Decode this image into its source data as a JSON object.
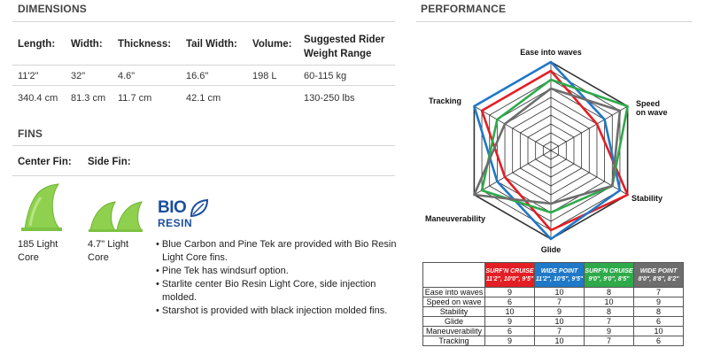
{
  "dimensions": {
    "title": "DIMENSIONS",
    "headers": [
      "Length:",
      "Width:",
      "Thickness:",
      "Tail Width:",
      "Volume:",
      "Suggested Rider Weight Range"
    ],
    "header_last_line1": "Suggested Rider",
    "header_last_line2": "Weight Range",
    "row1": [
      "11'2\"",
      "32\"",
      "4.6\"",
      "16.6\"",
      "198 L",
      "60-115 kg"
    ],
    "row2": [
      "340.4 cm",
      "81.3 cm",
      "11.7 cm",
      "42.1 cm",
      "",
      "130-250 lbs"
    ]
  },
  "fins": {
    "title": "FINS",
    "center_label": "Center Fin:",
    "side_label": "Side Fin:",
    "center_desc": [
      "185 Light",
      "Core"
    ],
    "side_desc": [
      "4.7\" Light",
      "Core"
    ],
    "logo_top": "BIO",
    "logo_bottom": "RESIN",
    "bullets": [
      "• Blue Carbon and Pine Tek are provided with Bio Resin",
      "Light Core fins.",
      "• Pine Tek has windsurf option.",
      "• Starlite center Bio Resin Light Core, side injection",
      "molded.",
      "• Starshot is provided with black injection molded fins."
    ]
  },
  "performance": {
    "title": "PERFORMANCE",
    "axes": [
      "Ease into waves",
      "Speed on wave",
      "Stability",
      "Glide",
      "Maneuverability",
      "Tracking"
    ],
    "axis_label_speed_1": "Speed",
    "axis_label_speed_2": "on wave",
    "table": {
      "columns": [
        {
          "line1": "SURF'N CRUISE",
          "line2": "11'2\", 10'0\", 9'5\"",
          "color": "#e31e24"
        },
        {
          "line1": "WIDE POINT",
          "line2": "11'2\", 10'5\", 9'5\"",
          "color": "#1f78c8"
        },
        {
          "line1": "SURF'N CRUISE",
          "line2": "9'0\", 9'0\", 8'5\"",
          "color": "#2eaa4a"
        },
        {
          "line1": "WIDE POINT",
          "line2": "8'0\", 8'8\", 8'2\"",
          "color": "#6d6d6d"
        }
      ],
      "rows": [
        {
          "label": "Ease into waves",
          "values": [
            "9",
            "10",
            "8",
            "7"
          ]
        },
        {
          "label": "Speed on wave",
          "values": [
            "6",
            "7",
            "10",
            "9"
          ]
        },
        {
          "label": "Stability",
          "values": [
            "10",
            "9",
            "8",
            "8"
          ]
        },
        {
          "label": "Glide",
          "values": [
            "9",
            "10",
            "7",
            "6"
          ]
        },
        {
          "label": "Maneuverability",
          "values": [
            "6",
            "7",
            "9",
            "10"
          ]
        },
        {
          "label": "Tracking",
          "values": [
            "9",
            "10",
            "7",
            "6"
          ]
        }
      ]
    }
  },
  "chart_data": {
    "type": "radar",
    "axes": [
      "Ease into waves",
      "Speed on wave",
      "Stability",
      "Glide",
      "Maneuverability",
      "Tracking"
    ],
    "range": [
      0,
      10
    ],
    "series": [
      {
        "name": "SURF'N CRUISE 11'2\", 10'0\", 9'5\"",
        "color": "#e31e24",
        "values": [
          9,
          6,
          10,
          9,
          6,
          9
        ]
      },
      {
        "name": "WIDE POINT 11'2\", 10'5\", 9'5\"",
        "color": "#1f78c8",
        "values": [
          10,
          7,
          9,
          10,
          7,
          10
        ]
      },
      {
        "name": "SURF'N CRUISE 9'0\", 9'0\", 8'5\"",
        "color": "#2eaa4a",
        "values": [
          8,
          10,
          8,
          7,
          9,
          7
        ]
      },
      {
        "name": "WIDE POINT 8'0\", 8'8\", 8'2\"",
        "color": "#6d6d6d",
        "values": [
          7,
          9,
          8,
          6,
          10,
          6
        ]
      }
    ]
  }
}
